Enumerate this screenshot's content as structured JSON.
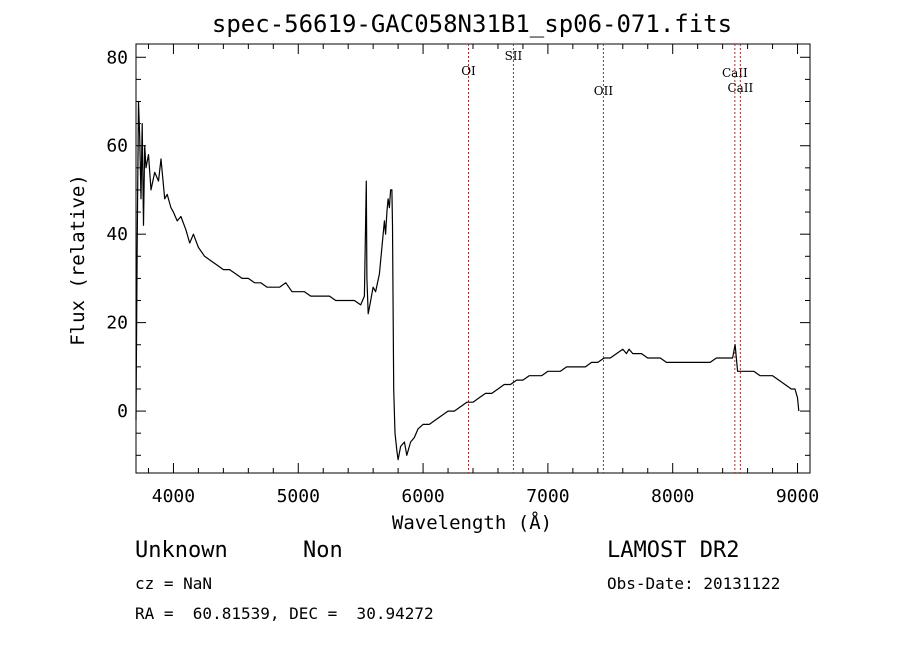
{
  "chart_data": {
    "type": "line",
    "title": "spec-56619-GAC058N31B1_sp06-071.fits",
    "xlabel": "Wavelength (Å)",
    "ylabel": "Flux (relative)",
    "xlim": [
      3700,
      9100
    ],
    "ylim": [
      -14,
      83
    ],
    "x_ticks": [
      4000,
      5000,
      6000,
      7000,
      8000,
      9000
    ],
    "y_ticks": [
      0,
      20,
      40,
      60,
      80
    ],
    "x_tick_labels": [
      "4000",
      "5000",
      "6000",
      "7000",
      "8000",
      "9000"
    ],
    "y_tick_labels": [
      "0",
      "20",
      "40",
      "60",
      "80"
    ],
    "grid": false,
    "legend": "none",
    "series": [
      {
        "color": "#000000",
        "x": [
          3700,
          3710,
          3720,
          3730,
          3740,
          3750,
          3760,
          3770,
          3780,
          3800,
          3820,
          3850,
          3880,
          3900,
          3930,
          3950,
          3980,
          4000,
          4030,
          4060,
          4100,
          4130,
          4160,
          4200,
          4250,
          4300,
          4350,
          4400,
          4450,
          4500,
          4550,
          4600,
          4650,
          4700,
          4750,
          4800,
          4850,
          4900,
          4950,
          5000,
          5050,
          5100,
          5150,
          5200,
          5250,
          5300,
          5350,
          5400,
          5450,
          5500,
          5530,
          5545,
          5550,
          5560,
          5580,
          5600,
          5620,
          5650,
          5670,
          5690,
          5700,
          5710,
          5720,
          5730,
          5740,
          5750,
          5755,
          5765,
          5775,
          5790,
          5800,
          5820,
          5850,
          5870,
          5900,
          5930,
          5960,
          6000,
          6050,
          6100,
          6150,
          6200,
          6250,
          6300,
          6350,
          6400,
          6450,
          6500,
          6550,
          6600,
          6650,
          6700,
          6750,
          6800,
          6850,
          6900,
          6950,
          7000,
          7050,
          7100,
          7150,
          7200,
          7250,
          7300,
          7350,
          7400,
          7450,
          7500,
          7550,
          7600,
          7630,
          7650,
          7680,
          7700,
          7750,
          7800,
          7850,
          7900,
          7950,
          8000,
          8050,
          8100,
          8150,
          8200,
          8250,
          8300,
          8350,
          8400,
          8450,
          8480,
          8500,
          8520,
          8540,
          8560,
          8600,
          8650,
          8700,
          8750,
          8800,
          8850,
          8900,
          8950,
          8980,
          9000,
          9010
        ],
        "y": [
          -2,
          38,
          70,
          62,
          48,
          65,
          42,
          60,
          55,
          58,
          50,
          54,
          52,
          57,
          48,
          49,
          46,
          45,
          43,
          44,
          41,
          38,
          40,
          37,
          35,
          34,
          33,
          32,
          32,
          31,
          30,
          30,
          29,
          29,
          28,
          28,
          28,
          29,
          27,
          27,
          27,
          26,
          26,
          26,
          26,
          25,
          25,
          25,
          25,
          24,
          26,
          52,
          30,
          22,
          25,
          28,
          27,
          31,
          37,
          43,
          40,
          45,
          48,
          46,
          50,
          50,
          42,
          5,
          -5,
          -9,
          -11,
          -8,
          -7,
          -10,
          -7,
          -6,
          -4,
          -3,
          -3,
          -2,
          -1,
          0,
          0,
          1,
          2,
          2,
          3,
          4,
          4,
          5,
          6,
          6,
          7,
          7,
          8,
          8,
          8,
          9,
          9,
          9,
          10,
          10,
          10,
          10,
          11,
          11,
          12,
          12,
          13,
          14,
          13,
          14,
          13,
          13,
          13,
          12,
          12,
          12,
          11,
          11,
          11,
          11,
          11,
          11,
          11,
          11,
          12,
          12,
          12,
          12,
          15,
          9,
          9,
          9,
          9,
          9,
          8,
          8,
          8,
          7,
          6,
          5,
          5,
          3,
          0
        ]
      }
    ],
    "annotations": [
      {
        "label": "OI",
        "x": 6364
      },
      {
        "label": "SII",
        "x": 6724
      },
      {
        "label": "OII",
        "x": 7445
      },
      {
        "label": "CaII",
        "x": 8498
      },
      {
        "label": "CaII",
        "x": 8542
      }
    ]
  },
  "info": {
    "class_label": "Unknown",
    "subclass_label": "Non",
    "survey": "LAMOST DR2",
    "cz": "cz = NaN",
    "obs_date": "Obs-Date: 20131122",
    "coords": "RA =  60.81539, DEC =  30.94272"
  },
  "colors": {
    "spectrum": "#000000",
    "annotation_line": "#a52a2a",
    "axes": "#000000",
    "background": "#ffffff"
  }
}
